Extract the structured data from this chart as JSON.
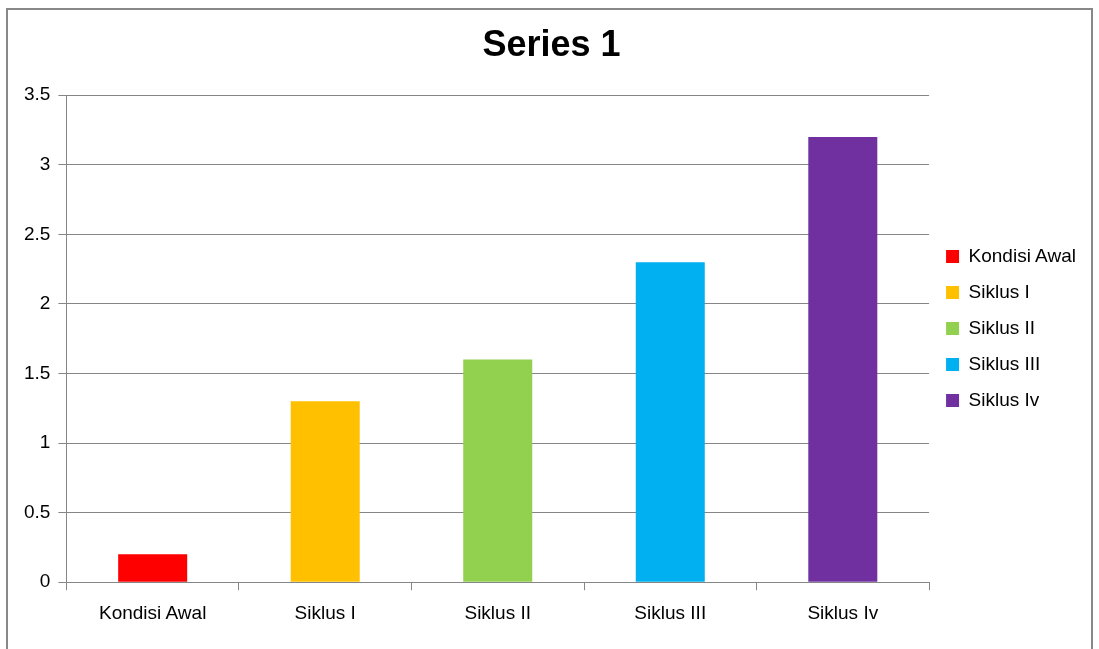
{
  "chart_data": {
    "type": "bar",
    "title": "Series 1",
    "categories": [
      "Kondisi Awal",
      "Siklus I",
      "Siklus II",
      "Siklus III",
      "Siklus Iv"
    ],
    "series": [
      {
        "name": "Kondisi Awal",
        "color": "#ff0000",
        "values": [
          0.2,
          null,
          null,
          null,
          null
        ]
      },
      {
        "name": "Siklus I",
        "color": "#ffc000",
        "values": [
          null,
          1.3,
          null,
          null,
          null
        ]
      },
      {
        "name": "Siklus II",
        "color": "#92d050",
        "values": [
          null,
          null,
          1.6,
          null,
          null
        ]
      },
      {
        "name": "Siklus III",
        "color": "#00b0f0",
        "values": [
          null,
          null,
          null,
          2.3,
          null
        ]
      },
      {
        "name": "Siklus Iv",
        "color": "#7030a0",
        "values": [
          null,
          null,
          null,
          null,
          3.2
        ]
      }
    ],
    "ylim": [
      0,
      3.5
    ],
    "yticks": [
      0,
      0.5,
      1,
      1.5,
      2,
      2.5,
      3,
      3.5
    ],
    "grid": "y",
    "legend": "right"
  }
}
